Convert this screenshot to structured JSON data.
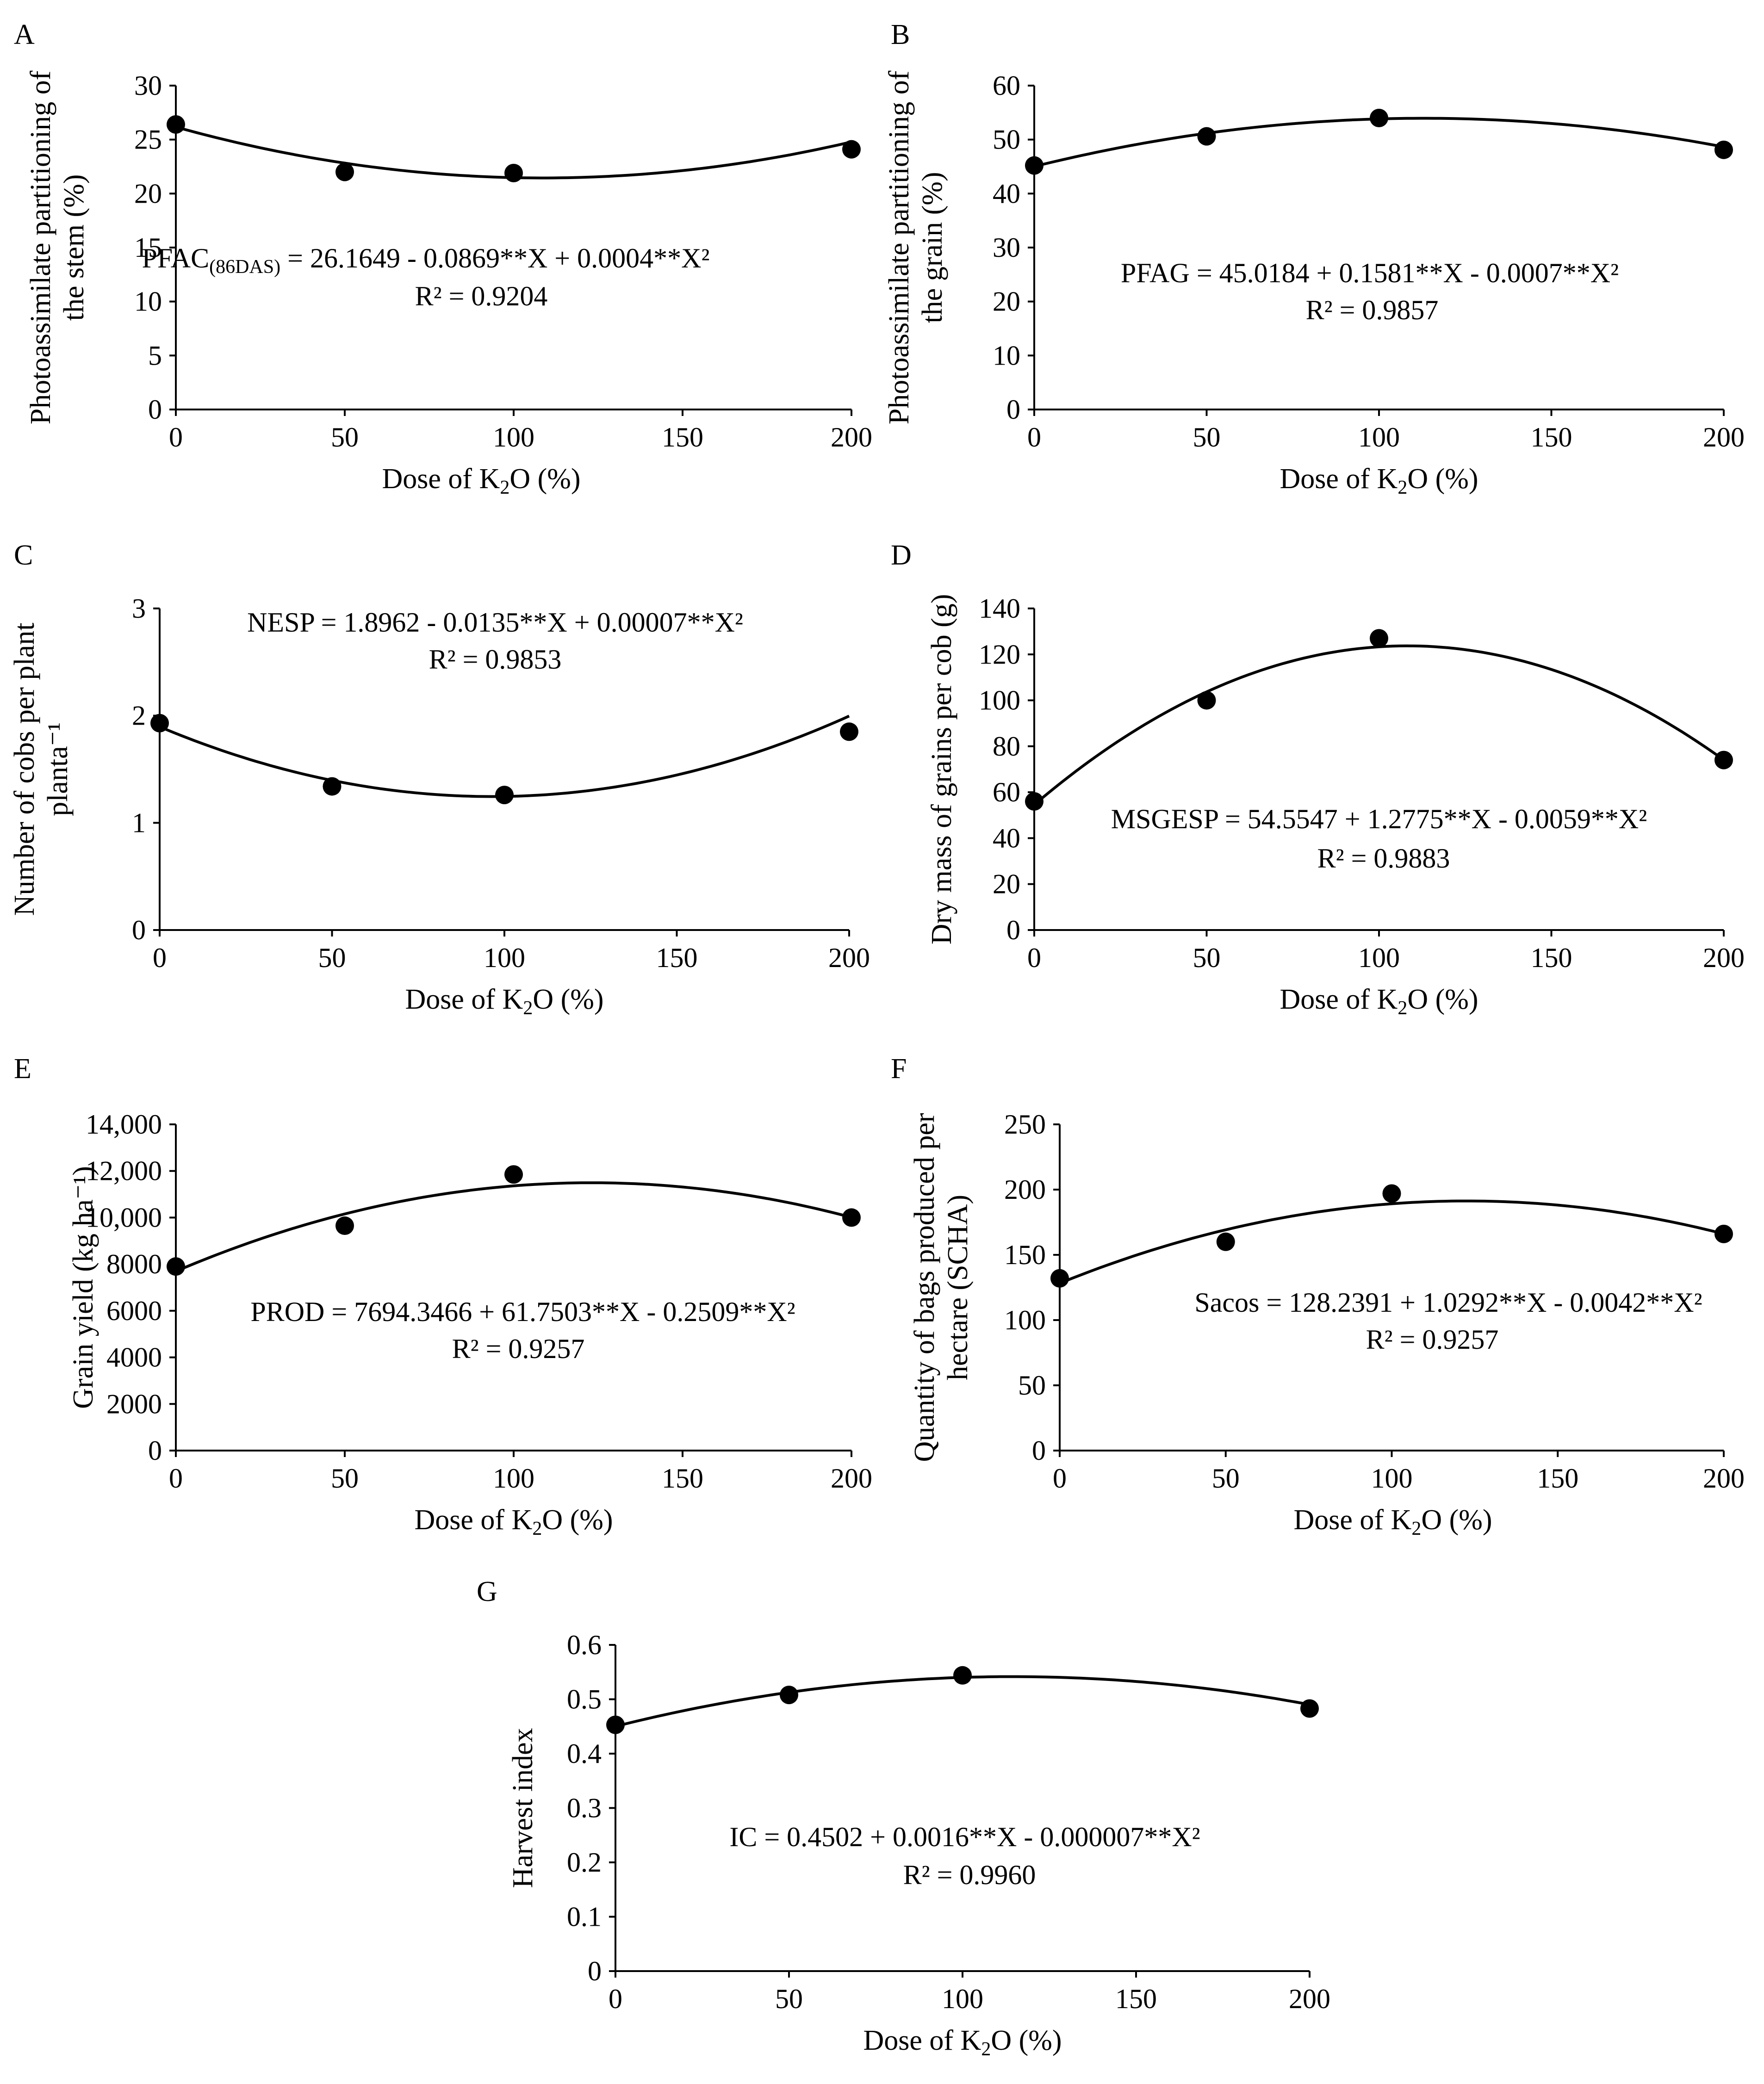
{
  "figure": {
    "x_axis_label_prefix": "Dose of K",
    "x_axis_label_sub": "2",
    "x_axis_label_suffix": "O (%)"
  },
  "chart_data": [
    {
      "id": "A",
      "type": "scatter",
      "panel_label": "A",
      "ylabel_lines": [
        "Photoassimilate  partitioning of",
        "the stem  (%)"
      ],
      "x_ticks": [
        0,
        50,
        100,
        150,
        200
      ],
      "y_ticks": [
        0,
        5,
        10,
        15,
        20,
        25,
        30
      ],
      "y_tick_labels": [
        "0",
        "5",
        "10",
        "15",
        "20",
        "25",
        "30"
      ],
      "xlim": [
        0,
        200
      ],
      "ylim": [
        0,
        30
      ],
      "points": {
        "x": [
          0,
          50,
          100,
          200
        ],
        "y": [
          26.4,
          22.0,
          21.9,
          24.1
        ]
      },
      "fit": {
        "a": 26.1649,
        "b": -0.0869,
        "c": 0.0004
      },
      "equation": {
        "prefix": "PFAC",
        "sub": "(86DAS)",
        "rest": " = 26.1649  - 0.0869**X + 0.0004**X²"
      },
      "r2": "R² = 0.9204"
    },
    {
      "id": "B",
      "type": "scatter",
      "panel_label": "B",
      "ylabel_lines": [
        "Photoassimilate  partitioning of",
        "the grain  (%)"
      ],
      "x_ticks": [
        0,
        50,
        100,
        150,
        200
      ],
      "y_ticks": [
        0,
        10,
        20,
        30,
        40,
        50,
        60
      ],
      "y_tick_labels": [
        "0",
        "10",
        "20",
        "30",
        "40",
        "50",
        "60"
      ],
      "xlim": [
        0,
        200
      ],
      "ylim": [
        0,
        60
      ],
      "points": {
        "x": [
          0,
          50,
          100,
          200
        ],
        "y": [
          45.2,
          50.6,
          54.0,
          48.1
        ]
      },
      "fit": {
        "a": 45.0184,
        "b": 0.1581,
        "c": -0.0007
      },
      "equation": {
        "prefix": "",
        "sub": "",
        "rest": "PFAG = 45.0184  + 0.1581**X  - 0.0007**X²"
      },
      "r2": "R² = 0.9857"
    },
    {
      "id": "C",
      "type": "scatter",
      "panel_label": "C",
      "ylabel_lines": [
        "Number of cobs per plant",
        "planta⁻¹"
      ],
      "x_ticks": [
        0,
        50,
        100,
        150,
        200
      ],
      "y_ticks": [
        0,
        1,
        2,
        3
      ],
      "y_tick_labels": [
        "0",
        "1",
        "2",
        "3"
      ],
      "xlim": [
        0,
        200
      ],
      "ylim": [
        0,
        3
      ],
      "points": {
        "x": [
          0,
          50,
          100,
          200
        ],
        "y": [
          1.93,
          1.34,
          1.26,
          1.85
        ]
      },
      "fit": {
        "a": 1.8962,
        "b": -0.0135,
        "c": 7e-05
      },
      "equation": {
        "prefix": "",
        "sub": "",
        "rest": "NESP = 1.8962  - 0.0135**X + 0.00007**X²"
      },
      "r2": "R² = 0.9853"
    },
    {
      "id": "D",
      "type": "scatter",
      "panel_label": "D",
      "ylabel_lines": [
        "Dry mass of grains  per cob  (g)"
      ],
      "x_ticks": [
        0,
        50,
        100,
        150,
        200
      ],
      "y_ticks": [
        0,
        20,
        40,
        60,
        80,
        100,
        120,
        140
      ],
      "y_tick_labels": [
        "0",
        "20",
        "40",
        "60",
        "80",
        "100",
        "120",
        "140"
      ],
      "xlim": [
        0,
        200
      ],
      "ylim": [
        0,
        140
      ],
      "points": {
        "x": [
          0,
          50,
          100,
          200
        ],
        "y": [
          56,
          100,
          127,
          74
        ]
      },
      "fit": {
        "a": 54.5547,
        "b": 1.2775,
        "c": -0.0059
      },
      "equation": {
        "prefix": "",
        "sub": "",
        "rest": "MSGESP = 54.5547  + 1.2775**X  - 0.0059**X²"
      },
      "r2": "R² = 0.9883"
    },
    {
      "id": "E",
      "type": "scatter",
      "panel_label": "E",
      "ylabel_lines": [
        "Grain yield  (kg ha⁻¹)"
      ],
      "x_ticks": [
        0,
        50,
        100,
        150,
        200
      ],
      "y_ticks": [
        0,
        2000,
        4000,
        6000,
        8000,
        10000,
        12000,
        14000
      ],
      "y_tick_labels": [
        "0",
        "2000",
        "4000",
        "6000",
        "8000",
        "10,000",
        "12,000",
        "14,000"
      ],
      "xlim": [
        0,
        200
      ],
      "ylim": [
        0,
        14000
      ],
      "points": {
        "x": [
          0,
          50,
          100,
          200
        ],
        "y": [
          7900,
          9650,
          11850,
          10000
        ]
      },
      "fit": {
        "a": 7694.3466,
        "b": 61.7503,
        "c": -0.2509
      },
      "equation": {
        "prefix": "",
        "sub": "",
        "rest": "PROD = 7694.3466  + 61.7503**X  - 0.2509**X²"
      },
      "r2": "R² = 0.9257"
    },
    {
      "id": "F",
      "type": "scatter",
      "panel_label": "F",
      "ylabel_lines": [
        "Quantity of bags produced per",
        "hectare (SCHA)"
      ],
      "x_ticks": [
        0,
        50,
        100,
        150,
        200
      ],
      "y_ticks": [
        0,
        50,
        100,
        150,
        200,
        250
      ],
      "y_tick_labels": [
        "0",
        "50",
        "100",
        "150",
        "200",
        "250"
      ],
      "xlim": [
        0,
        200
      ],
      "ylim": [
        0,
        250
      ],
      "points": {
        "x": [
          0,
          50,
          100,
          200
        ],
        "y": [
          132,
          160,
          197,
          166
        ]
      },
      "fit": {
        "a": 128.2391,
        "b": 1.0292,
        "c": -0.0042
      },
      "equation": {
        "prefix": "",
        "sub": "",
        "rest": "Sacos = 128.2391  + 1.0292**X  - 0.0042**X²"
      },
      "r2": "R² = 0.9257"
    },
    {
      "id": "G",
      "type": "scatter",
      "panel_label": "G",
      "ylabel_lines": [
        "Harvest  index"
      ],
      "x_ticks": [
        0,
        50,
        100,
        150,
        200
      ],
      "y_ticks": [
        0,
        0.1,
        0.2,
        0.3,
        0.4,
        0.5,
        0.6
      ],
      "y_tick_labels": [
        "0",
        "0.1",
        "0.2",
        "0.3",
        "0.4",
        "0.5",
        "0.6"
      ],
      "xlim": [
        0,
        200
      ],
      "ylim": [
        0,
        0.6
      ],
      "points": {
        "x": [
          0,
          50,
          100,
          200
        ],
        "y": [
          0.453,
          0.508,
          0.544,
          0.483
        ]
      },
      "fit": {
        "a": 0.4502,
        "b": 0.0016,
        "c": -7e-06
      },
      "equation": {
        "prefix": "",
        "sub": "",
        "rest": "IC = 0.4502  + 0.0016**X  - 0.000007**X²"
      },
      "r2": "R² = 0.9960"
    }
  ]
}
